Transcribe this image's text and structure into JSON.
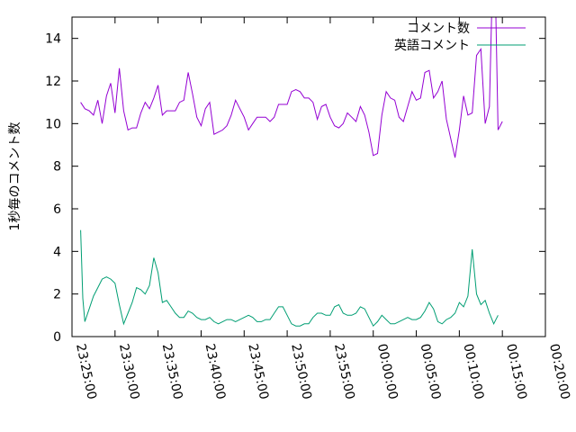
{
  "chart_data": {
    "type": "line",
    "ylabel": "1秒毎のコメント数",
    "xlabel": "",
    "ylim": [
      0,
      15
    ],
    "yticks": [
      0,
      2,
      4,
      6,
      8,
      10,
      12,
      14
    ],
    "xlim": [
      "23:25:00",
      "00:20:00"
    ],
    "xticks": [
      "23:25:00",
      "23:30:00",
      "23:35:00",
      "23:40:00",
      "23:45:00",
      "23:50:00",
      "23:55:00",
      "00:00:00",
      "00:05:00",
      "00:10:00",
      "00:15:00",
      "00:20:00"
    ],
    "legend_position": "top-right",
    "grid": false,
    "series": [
      {
        "name": "コメント数",
        "color": "#9400d3",
        "points": [
          [
            "23:26:00",
            11.0
          ],
          [
            "23:26:30",
            10.7
          ],
          [
            "23:27:00",
            10.6
          ],
          [
            "23:27:30",
            10.4
          ],
          [
            "23:28:00",
            11.1
          ],
          [
            "23:28:30",
            10.0
          ],
          [
            "23:29:00",
            11.3
          ],
          [
            "23:29:30",
            11.9
          ],
          [
            "23:30:00",
            10.5
          ],
          [
            "23:30:30",
            12.6
          ],
          [
            "23:31:00",
            10.6
          ],
          [
            "23:31:30",
            9.7
          ],
          [
            "23:32:00",
            9.8
          ],
          [
            "23:32:30",
            9.8
          ],
          [
            "23:33:00",
            10.5
          ],
          [
            "23:33:30",
            11.0
          ],
          [
            "23:34:00",
            10.7
          ],
          [
            "23:34:30",
            11.2
          ],
          [
            "23:35:00",
            11.8
          ],
          [
            "23:35:30",
            10.4
          ],
          [
            "23:36:00",
            10.6
          ],
          [
            "23:36:30",
            10.6
          ],
          [
            "23:37:00",
            10.6
          ],
          [
            "23:37:30",
            11.0
          ],
          [
            "23:38:00",
            11.1
          ],
          [
            "23:38:30",
            12.4
          ],
          [
            "23:39:00",
            11.4
          ],
          [
            "23:39:30",
            10.3
          ],
          [
            "23:40:00",
            9.9
          ],
          [
            "23:40:30",
            10.7
          ],
          [
            "23:41:00",
            11.0
          ],
          [
            "23:41:30",
            9.5
          ],
          [
            "23:42:00",
            9.6
          ],
          [
            "23:42:30",
            9.7
          ],
          [
            "23:43:00",
            9.9
          ],
          [
            "23:43:30",
            10.4
          ],
          [
            "23:44:00",
            11.1
          ],
          [
            "23:44:30",
            10.7
          ],
          [
            "23:45:00",
            10.3
          ],
          [
            "23:45:30",
            9.7
          ],
          [
            "23:46:00",
            10.0
          ],
          [
            "23:46:30",
            10.3
          ],
          [
            "23:47:00",
            10.3
          ],
          [
            "23:47:30",
            10.3
          ],
          [
            "23:48:00",
            10.1
          ],
          [
            "23:48:30",
            10.3
          ],
          [
            "23:49:00",
            10.9
          ],
          [
            "23:49:30",
            10.9
          ],
          [
            "23:50:00",
            10.9
          ],
          [
            "23:50:30",
            11.5
          ],
          [
            "23:51:00",
            11.6
          ],
          [
            "23:51:30",
            11.5
          ],
          [
            "23:52:00",
            11.2
          ],
          [
            "23:52:30",
            11.2
          ],
          [
            "23:53:00",
            11.0
          ],
          [
            "23:53:30",
            10.2
          ],
          [
            "23:54:00",
            10.8
          ],
          [
            "23:54:30",
            10.9
          ],
          [
            "23:55:00",
            10.3
          ],
          [
            "23:55:30",
            9.9
          ],
          [
            "23:56:00",
            9.8
          ],
          [
            "23:56:30",
            10.0
          ],
          [
            "23:57:00",
            10.5
          ],
          [
            "23:57:30",
            10.3
          ],
          [
            "23:58:00",
            10.1
          ],
          [
            "23:58:30",
            10.8
          ],
          [
            "23:59:00",
            10.4
          ],
          [
            "23:59:30",
            9.6
          ],
          [
            "00:00:00",
            8.5
          ],
          [
            "00:00:30",
            8.6
          ],
          [
            "00:01:00",
            10.4
          ],
          [
            "00:01:30",
            11.5
          ],
          [
            "00:02:00",
            11.2
          ],
          [
            "00:02:30",
            11.1
          ],
          [
            "00:03:00",
            10.3
          ],
          [
            "00:03:30",
            10.1
          ],
          [
            "00:04:00",
            10.8
          ],
          [
            "00:04:30",
            11.5
          ],
          [
            "00:05:00",
            11.1
          ],
          [
            "00:05:30",
            11.2
          ],
          [
            "00:06:00",
            12.4
          ],
          [
            "00:06:30",
            12.5
          ],
          [
            "00:07:00",
            11.2
          ],
          [
            "00:07:30",
            11.5
          ],
          [
            "00:08:00",
            12.0
          ],
          [
            "00:08:30",
            10.2
          ],
          [
            "00:09:00",
            9.3
          ],
          [
            "00:09:30",
            8.4
          ],
          [
            "00:10:00",
            9.7
          ],
          [
            "00:10:30",
            11.3
          ],
          [
            "00:11:00",
            10.4
          ],
          [
            "00:11:30",
            10.5
          ],
          [
            "00:12:00",
            13.2
          ],
          [
            "00:12:30",
            13.5
          ],
          [
            "00:13:00",
            10.0
          ],
          [
            "00:13:30",
            10.8
          ],
          [
            "00:13:45",
            15.0
          ],
          [
            "00:14:15",
            15.0
          ],
          [
            "00:14:30",
            9.7
          ],
          [
            "00:15:00",
            10.1
          ]
        ]
      },
      {
        "name": "英語コメント",
        "color": "#009e73",
        "points": [
          [
            "23:26:00",
            5.0
          ],
          [
            "23:26:15",
            1.8
          ],
          [
            "23:26:30",
            0.7
          ],
          [
            "23:27:00",
            1.3
          ],
          [
            "23:27:30",
            1.9
          ],
          [
            "23:28:00",
            2.3
          ],
          [
            "23:28:30",
            2.7
          ],
          [
            "23:29:00",
            2.8
          ],
          [
            "23:29:30",
            2.7
          ],
          [
            "23:30:00",
            2.5
          ],
          [
            "23:30:30",
            1.5
          ],
          [
            "23:31:00",
            0.6
          ],
          [
            "23:31:30",
            1.1
          ],
          [
            "23:32:00",
            1.6
          ],
          [
            "23:32:30",
            2.3
          ],
          [
            "23:33:00",
            2.2
          ],
          [
            "23:33:30",
            2.0
          ],
          [
            "23:34:00",
            2.4
          ],
          [
            "23:34:30",
            3.7
          ],
          [
            "23:35:00",
            3.0
          ],
          [
            "23:35:30",
            1.6
          ],
          [
            "23:36:00",
            1.7
          ],
          [
            "23:36:30",
            1.4
          ],
          [
            "23:37:00",
            1.1
          ],
          [
            "23:37:30",
            0.9
          ],
          [
            "23:38:00",
            0.9
          ],
          [
            "23:38:30",
            1.2
          ],
          [
            "23:39:00",
            1.1
          ],
          [
            "23:39:30",
            0.9
          ],
          [
            "23:40:00",
            0.8
          ],
          [
            "23:40:30",
            0.8
          ],
          [
            "23:41:00",
            0.9
          ],
          [
            "23:41:30",
            0.7
          ],
          [
            "23:42:00",
            0.6
          ],
          [
            "23:42:30",
            0.7
          ],
          [
            "23:43:00",
            0.8
          ],
          [
            "23:43:30",
            0.8
          ],
          [
            "23:44:00",
            0.7
          ],
          [
            "23:44:30",
            0.8
          ],
          [
            "23:45:00",
            0.9
          ],
          [
            "23:45:30",
            1.0
          ],
          [
            "23:46:00",
            0.9
          ],
          [
            "23:46:30",
            0.7
          ],
          [
            "23:47:00",
            0.7
          ],
          [
            "23:47:30",
            0.8
          ],
          [
            "23:48:00",
            0.8
          ],
          [
            "23:48:30",
            1.1
          ],
          [
            "23:49:00",
            1.4
          ],
          [
            "23:49:30",
            1.4
          ],
          [
            "23:50:00",
            1.0
          ],
          [
            "23:50:30",
            0.6
          ],
          [
            "23:51:00",
            0.5
          ],
          [
            "23:51:30",
            0.5
          ],
          [
            "23:52:00",
            0.6
          ],
          [
            "23:52:30",
            0.6
          ],
          [
            "23:53:00",
            0.9
          ],
          [
            "23:53:30",
            1.1
          ],
          [
            "23:54:00",
            1.1
          ],
          [
            "23:54:30",
            1.0
          ],
          [
            "23:55:00",
            1.0
          ],
          [
            "23:55:30",
            1.4
          ],
          [
            "23:56:00",
            1.5
          ],
          [
            "23:56:30",
            1.1
          ],
          [
            "23:57:00",
            1.0
          ],
          [
            "23:57:30",
            1.0
          ],
          [
            "23:58:00",
            1.1
          ],
          [
            "23:58:30",
            1.4
          ],
          [
            "23:59:00",
            1.3
          ],
          [
            "23:59:30",
            0.9
          ],
          [
            "00:00:00",
            0.5
          ],
          [
            "00:00:30",
            0.7
          ],
          [
            "00:01:00",
            1.0
          ],
          [
            "00:01:30",
            0.8
          ],
          [
            "00:02:00",
            0.6
          ],
          [
            "00:02:30",
            0.6
          ],
          [
            "00:03:00",
            0.7
          ],
          [
            "00:03:30",
            0.8
          ],
          [
            "00:04:00",
            0.9
          ],
          [
            "00:04:30",
            0.8
          ],
          [
            "00:05:00",
            0.8
          ],
          [
            "00:05:30",
            0.9
          ],
          [
            "00:06:00",
            1.2
          ],
          [
            "00:06:30",
            1.6
          ],
          [
            "00:07:00",
            1.3
          ],
          [
            "00:07:30",
            0.7
          ],
          [
            "00:08:00",
            0.6
          ],
          [
            "00:08:30",
            0.8
          ],
          [
            "00:09:00",
            0.9
          ],
          [
            "00:09:30",
            1.1
          ],
          [
            "00:10:00",
            1.6
          ],
          [
            "00:10:30",
            1.4
          ],
          [
            "00:11:00",
            1.9
          ],
          [
            "00:11:30",
            4.1
          ],
          [
            "00:12:00",
            2.0
          ],
          [
            "00:12:30",
            1.5
          ],
          [
            "00:13:00",
            1.7
          ],
          [
            "00:13:30",
            1.1
          ],
          [
            "00:14:00",
            0.6
          ],
          [
            "00:14:30",
            1.0
          ]
        ]
      }
    ]
  }
}
